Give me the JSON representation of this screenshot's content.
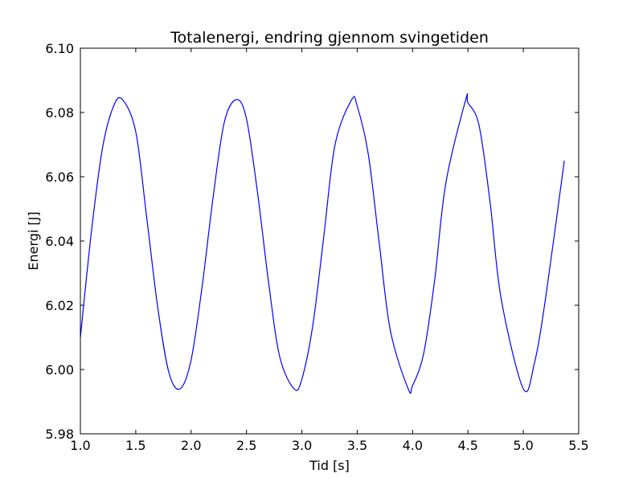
{
  "chart_data": {
    "type": "line",
    "title": "Totalenergi, endring gjennom svingetiden",
    "xlabel": "Tid [s]",
    "ylabel": "Energi [J]",
    "xlim": [
      1.0,
      5.5
    ],
    "ylim": [
      5.98,
      6.1
    ],
    "x_ticks": [
      "1.0",
      "1.5",
      "2.0",
      "2.5",
      "3.0",
      "3.5",
      "4.0",
      "4.5",
      "5.0",
      "5.5"
    ],
    "y_ticks": [
      "5.98",
      "6.00",
      "6.02",
      "6.04",
      "6.06",
      "6.08",
      "6.10"
    ],
    "grid": false,
    "series": [
      {
        "color": "#0000ff",
        "x": [
          1.0,
          1.1,
          1.2,
          1.3,
          1.38,
          1.5,
          1.6,
          1.7,
          1.8,
          1.9,
          2.0,
          2.1,
          2.2,
          2.3,
          2.41,
          2.5,
          2.6,
          2.7,
          2.8,
          2.93,
          3.0,
          3.1,
          3.2,
          3.3,
          3.45,
          3.5,
          3.6,
          3.7,
          3.8,
          3.96,
          4.0,
          4.1,
          4.2,
          4.3,
          4.48,
          4.5,
          4.6,
          4.7,
          4.8,
          5.0,
          5.1,
          5.2,
          5.37
        ],
        "y": [
          6.01,
          6.043,
          6.069,
          6.082,
          6.084,
          6.074,
          6.047,
          6.019,
          5.999,
          5.994,
          6.003,
          6.026,
          6.054,
          6.077,
          6.084,
          6.078,
          6.055,
          6.027,
          6.004,
          5.994,
          5.997,
          6.014,
          6.042,
          6.07,
          6.084,
          6.082,
          6.067,
          6.039,
          6.012,
          5.994,
          5.995,
          6.005,
          6.028,
          6.058,
          6.084,
          6.083,
          6.076,
          6.052,
          6.022,
          5.994,
          6.002,
          6.022,
          6.065
        ]
      }
    ]
  }
}
